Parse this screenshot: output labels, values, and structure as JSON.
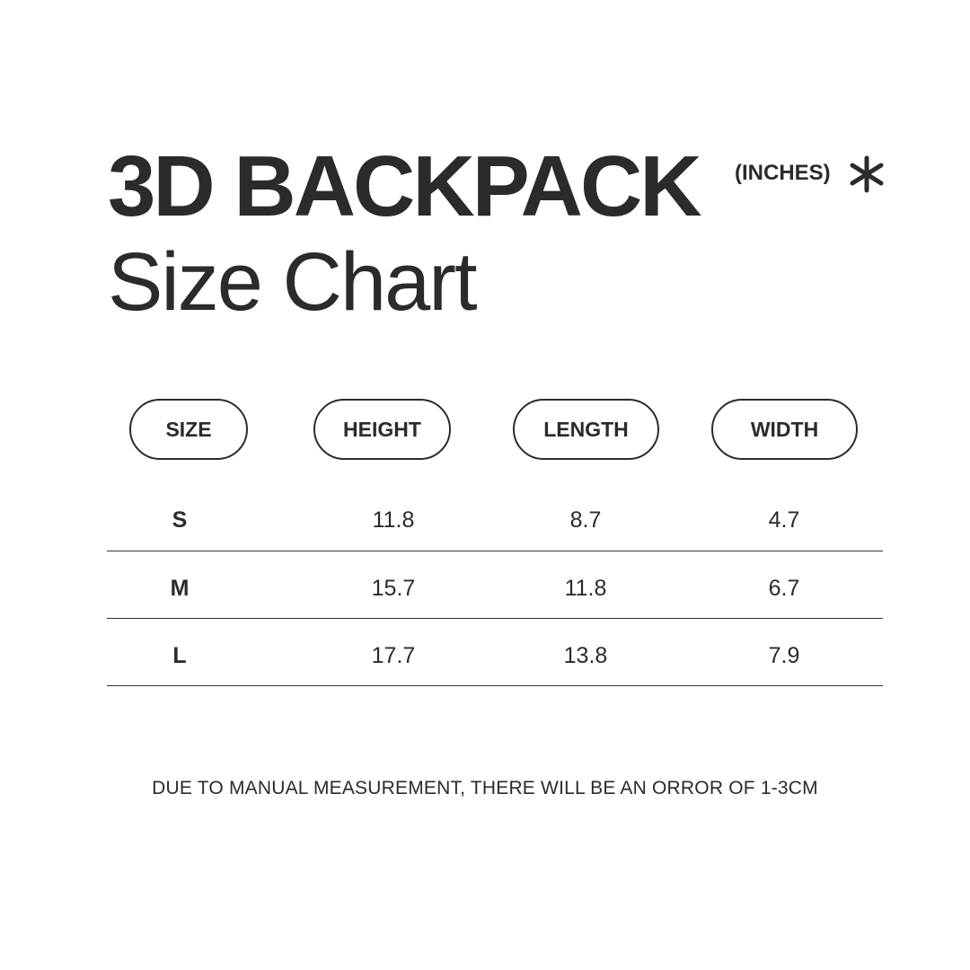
{
  "header": {
    "title": "3D BACKPACK",
    "subtitle": "Size Chart",
    "unit": "(INCHES)",
    "unit_icon": "asterisk-icon"
  },
  "table": {
    "columns": [
      "SIZE",
      "HEIGHT",
      "LENGTH",
      "WIDTH"
    ],
    "rows": [
      [
        "S",
        "11.8",
        "8.7",
        "4.7"
      ],
      [
        "M",
        "15.7",
        "11.8",
        "6.7"
      ],
      [
        "L",
        "17.7",
        "13.8",
        "7.9"
      ]
    ]
  },
  "footnote": "DUE TO MANUAL MEASUREMENT, THERE WILL BE AN ORROR OF 1-3CM",
  "colors": {
    "text": "#2b2b2b",
    "background": "#ffffff"
  }
}
